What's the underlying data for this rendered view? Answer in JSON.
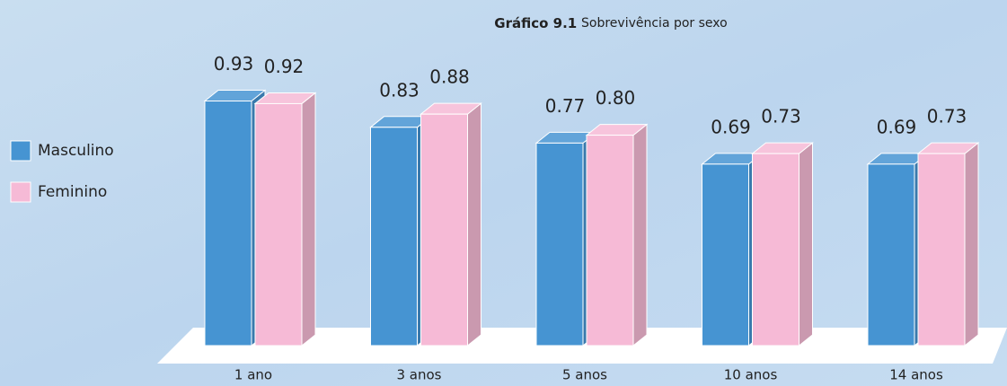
{
  "chart_data": {
    "type": "bar3d",
    "title": "Gráfico 9.1",
    "subtitle": "Sobrevivência por sexo",
    "categories": [
      "1 ano",
      "3 anos",
      "5 anos",
      "10 anos",
      "14 anos"
    ],
    "series": [
      {
        "name": "Masculino",
        "color": "#4694d2",
        "values": [
          0.93,
          0.83,
          0.77,
          0.69,
          0.69
        ],
        "value_labels": [
          "0.93",
          "0.83",
          "0.77",
          "0.69",
          "0.69"
        ]
      },
      {
        "name": "Feminino",
        "color": "#f6bad6",
        "values": [
          0.92,
          0.88,
          0.8,
          0.73,
          0.73
        ],
        "value_labels": [
          "0.92",
          "0.88",
          "0.80",
          "0.73",
          "0.73"
        ]
      }
    ],
    "legend": "left"
  }
}
